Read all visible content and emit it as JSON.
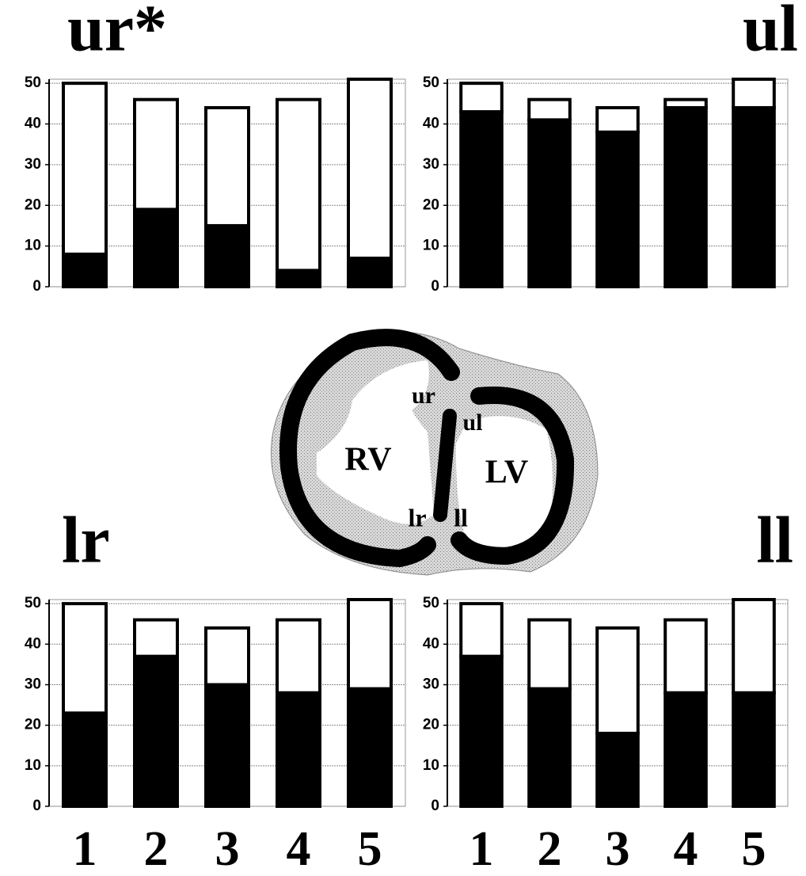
{
  "chart_data": [
    {
      "type": "bar",
      "stacked": true,
      "title": "ur*",
      "categories": [
        null,
        null,
        null,
        null,
        null
      ],
      "series": [
        {
          "color": "#000000",
          "values": [
            8,
            19,
            15,
            4,
            7
          ]
        },
        {
          "color": "#ffffff",
          "values": [
            42,
            27,
            29,
            42,
            44
          ]
        }
      ],
      "ylim": [
        0,
        51
      ],
      "yticks": [
        0,
        10,
        20,
        30,
        40,
        50
      ],
      "grid": true
    },
    {
      "type": "bar",
      "stacked": true,
      "title": "ul",
      "categories": [
        null,
        null,
        null,
        null,
        null
      ],
      "series": [
        {
          "color": "#000000",
          "values": [
            43,
            41,
            38,
            44,
            44
          ]
        },
        {
          "color": "#ffffff",
          "values": [
            7,
            5,
            6,
            2,
            7
          ]
        }
      ],
      "ylim": [
        0,
        51
      ],
      "yticks": [
        0,
        10,
        20,
        30,
        40,
        50
      ],
      "grid": true
    },
    {
      "type": "bar",
      "stacked": true,
      "title": "lr",
      "categories": [
        "1",
        "2",
        "3",
        "4",
        "5"
      ],
      "series": [
        {
          "color": "#000000",
          "values": [
            23,
            37,
            30,
            28,
            29
          ]
        },
        {
          "color": "#ffffff",
          "values": [
            27,
            9,
            14,
            18,
            22
          ]
        }
      ],
      "ylim": [
        0,
        51
      ],
      "yticks": [
        0,
        10,
        20,
        30,
        40,
        50
      ],
      "grid": true
    },
    {
      "type": "bar",
      "stacked": true,
      "title": "ll",
      "categories": [
        "1",
        "2",
        "3",
        "4",
        "5"
      ],
      "series": [
        {
          "color": "#000000",
          "values": [
            37,
            29,
            18,
            28,
            28
          ]
        },
        {
          "color": "#ffffff",
          "values": [
            13,
            17,
            26,
            18,
            23
          ]
        }
      ],
      "ylim": [
        0,
        51
      ],
      "yticks": [
        0,
        10,
        20,
        30,
        40,
        50
      ],
      "grid": true
    }
  ],
  "diagram": {
    "labels": [
      "ur",
      "ul",
      "RV",
      "LV",
      "lr",
      "ll"
    ]
  }
}
